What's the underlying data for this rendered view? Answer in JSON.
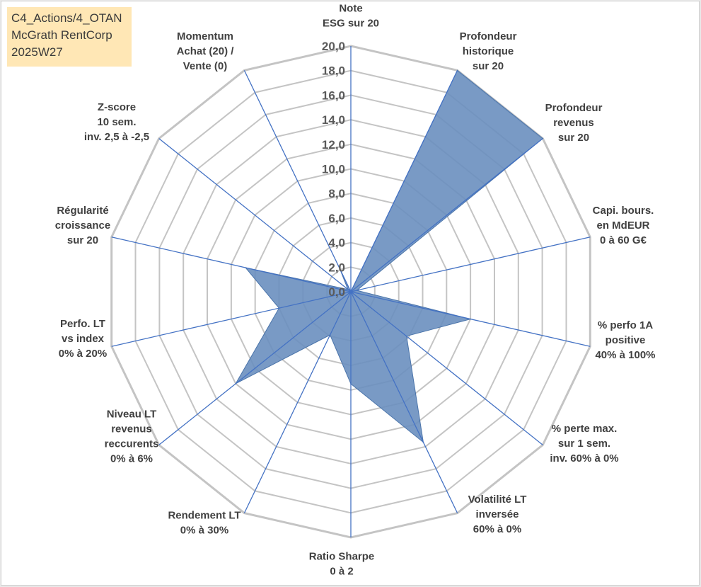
{
  "info_box": {
    "line1": "C4_Actions/4_OTAN",
    "line2": "McGrath RentCorp",
    "line3": "2025W27"
  },
  "chart_data": {
    "type": "radar",
    "title": "",
    "r_range": [
      0,
      20
    ],
    "r_ticks": [
      "0,0",
      "2,0",
      "4,0",
      "6,0",
      "8,0",
      "10,0",
      "12,0",
      "14,0",
      "16,0",
      "18,0",
      "20,0"
    ],
    "grid": true,
    "categories": [
      [
        "Note",
        "ESG sur 20"
      ],
      [
        "Profondeur",
        "historique",
        "sur 20"
      ],
      [
        "Profondeur",
        "revenus",
        "sur 20"
      ],
      [
        "Capi. bours.",
        "en MdEUR",
        "0 à 60 G€"
      ],
      [
        "% perfo 1A",
        "positive",
        "40% à 100%"
      ],
      [
        "% perte max.",
        "sur 1 sem.",
        "inv. 60% à 0%"
      ],
      [
        "Volatilité LT",
        "inversée",
        "60% à 0%"
      ],
      [
        "Ratio Sharpe",
        "0 à 2"
      ],
      [
        "Rendement LT",
        "0% à 30%"
      ],
      [
        "Niveau LT",
        "revenus",
        "reccurents",
        "0% à 6%"
      ],
      [
        "Perfo. LT",
        "vs index",
        "0% à 20%"
      ],
      [
        "Régularité",
        "croissance",
        "sur 20"
      ],
      [
        "Z-score",
        "10 sem.",
        "inv. 2,5 à -2,5"
      ],
      [
        "Momentum",
        "Achat (20) /",
        "Vente (0)"
      ]
    ],
    "series": [
      {
        "values": [
          0.0,
          20.0,
          20.0,
          0.5,
          10.0,
          5.8,
          13.6,
          7.5,
          3.9,
          12.0,
          6.0,
          8.8,
          0.3,
          2.1
        ],
        "fill": "#6a8fbf",
        "stroke": "#4a74aa"
      }
    ],
    "colors": {
      "grid": "#c4c4c4",
      "spoke": "#4472c4"
    }
  }
}
